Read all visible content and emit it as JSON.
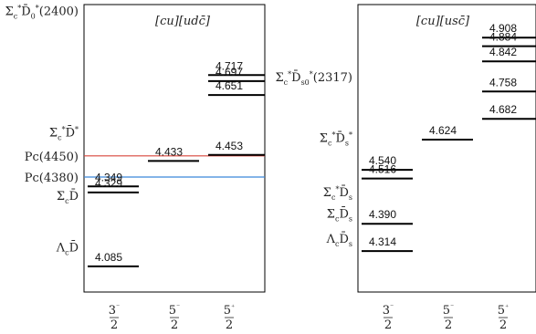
{
  "chart_data": [
    {
      "type": "level-diagram",
      "quark_content": "[cu][udc̄]",
      "columns": [
        "3/2⁻",
        "5/2⁻",
        "5/2⁺"
      ],
      "levels": [
        {
          "column": 0,
          "value": 4.349
        },
        {
          "column": 0,
          "value": 4.329
        },
        {
          "column": 0,
          "value": 4.085
        },
        {
          "column": 1,
          "value": 4.433
        },
        {
          "column": 2,
          "value": 4.717
        },
        {
          "column": 2,
          "value": 4.697
        },
        {
          "column": 2,
          "value": 4.651
        },
        {
          "column": 2,
          "value": 4.453
        }
      ],
      "thresholds": [
        {
          "label": "Σc*D̄0*(2400)",
          "value": 4.93
        },
        {
          "label": "Σc*D̄*",
          "value": 4.53
        },
        {
          "label": "Pc(4450)",
          "value": 4.45,
          "color": "#d9453a"
        },
        {
          "label": "Pc(4380)",
          "value": 4.38,
          "color": "#3a86d9"
        },
        {
          "label": "ΣcD̄",
          "value": 4.32
        },
        {
          "label": "ΛcD̄",
          "value": 4.15
        }
      ],
      "ylim": [
        4.0,
        4.95
      ]
    },
    {
      "type": "level-diagram",
      "quark_content": "[cu][usc̄]",
      "columns": [
        "3/2⁻",
        "5/2⁻",
        "5/2⁺"
      ],
      "levels": [
        {
          "column": 0,
          "value": 4.54
        },
        {
          "column": 0,
          "value": 4.516
        },
        {
          "column": 0,
          "value": 4.39
        },
        {
          "column": 0,
          "value": 4.314
        },
        {
          "column": 1,
          "value": 4.624
        },
        {
          "column": 2,
          "value": 4.908
        },
        {
          "column": 2,
          "value": 4.884
        },
        {
          "column": 2,
          "value": 4.842
        },
        {
          "column": 2,
          "value": 4.758
        },
        {
          "column": 2,
          "value": 4.682
        }
      ],
      "thresholds": [
        {
          "label": "Σc*D̄s0*(2317)",
          "value": 4.8
        },
        {
          "label": "Σc*D̄s*",
          "value": 4.63
        },
        {
          "label": "Σc*D̄s",
          "value": 4.48
        },
        {
          "label": "ΣcD̄s",
          "value": 4.42
        },
        {
          "label": "ΛcD̄s",
          "value": 4.35
        }
      ],
      "ylim": [
        4.2,
        5.0
      ]
    }
  ]
}
